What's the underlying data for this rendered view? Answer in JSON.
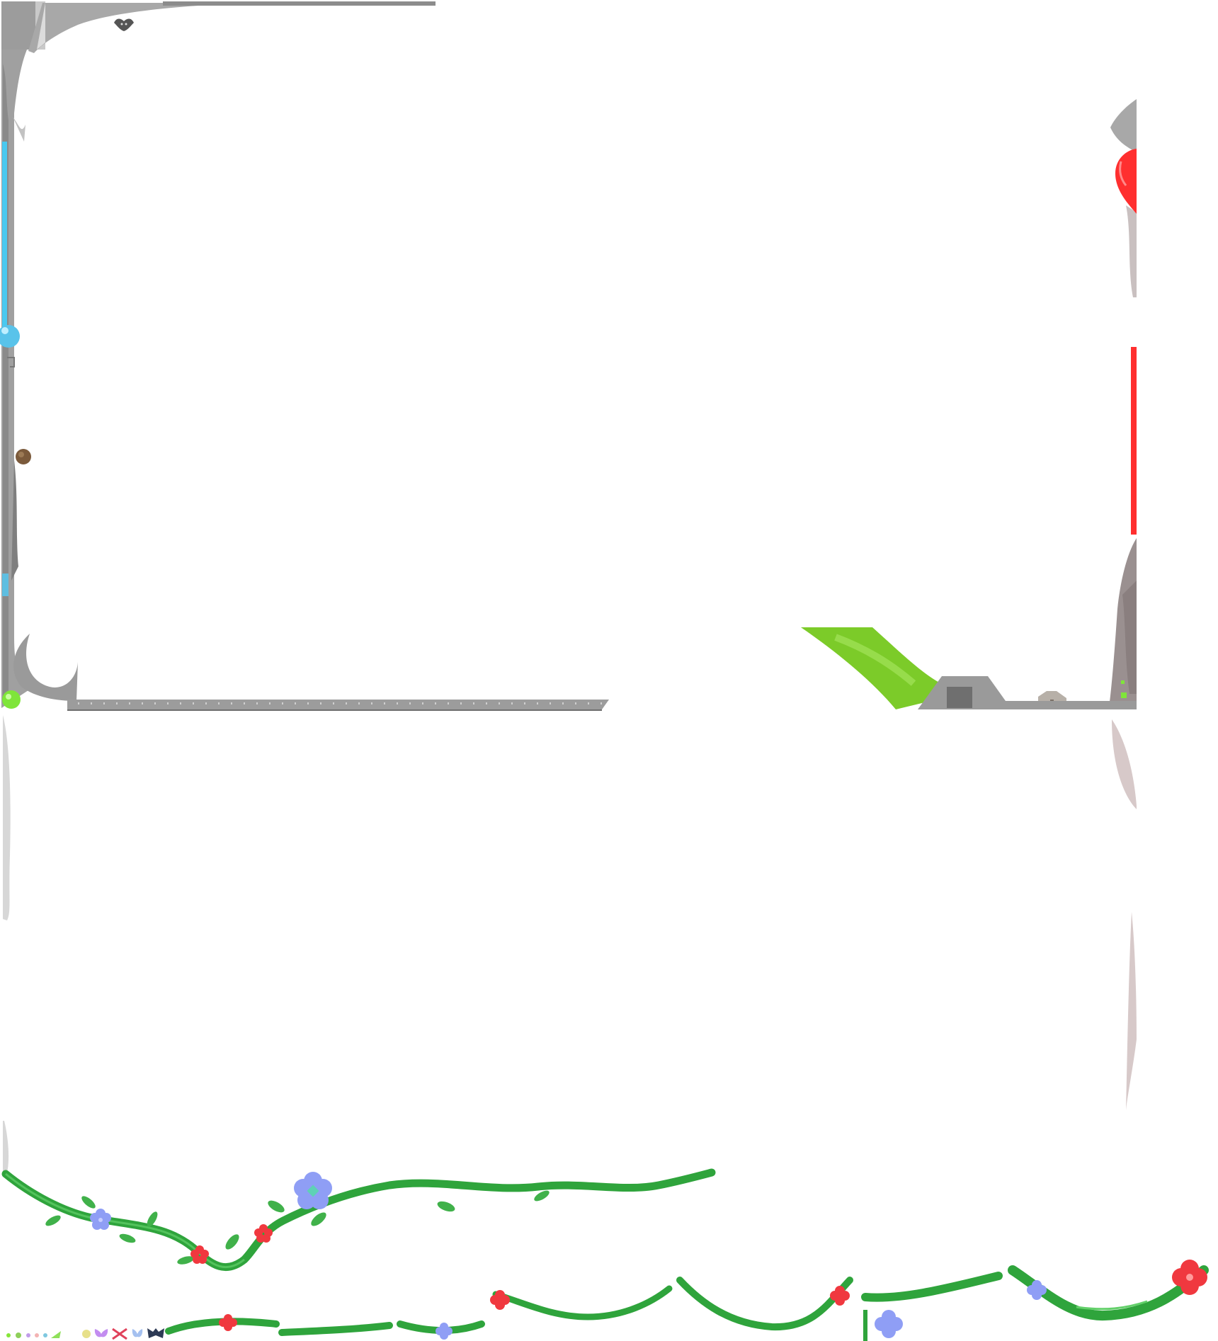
{
  "sheet": {
    "kind": "ui-sprite-sheet",
    "has_visible_text": false
  },
  "colors": {
    "background": "#ffffff",
    "stone": "#9c9c9c",
    "stone_dark": "#6f6f6f",
    "stone_light": "#c9c9c9",
    "mana_blue": "#49c9f0",
    "mana_orb": "#59c3ea",
    "health_red": "#ff2f2f",
    "leaf_green": "#7ccb29",
    "leaf_light": "#9fdc4a",
    "vine_green": "#2fa43c",
    "vine_dark": "#1f7c2d",
    "vine_highlight": "#63d06a",
    "flower_blue": "#8f9ef5",
    "flower_red": "#f0383f",
    "flower_center_teal": "#5ed1b5",
    "accent_green": "#86e63a",
    "brown_knot": "#7b5a3b"
  },
  "sprites": [
    {
      "name": "stone-frame-top-left-corner",
      "icon": "stone-arch"
    },
    {
      "name": "stone-frame-top-edge",
      "icon": "stone-bar"
    },
    {
      "name": "stone-frame-left-pillar",
      "icon": "stone-pillar"
    },
    {
      "name": "mana-bar-vertical",
      "icon": "blue-bar"
    },
    {
      "name": "mana-orb",
      "icon": "blue-orb"
    },
    {
      "name": "bat-ornament",
      "icon": "bat"
    },
    {
      "name": "brown-knot",
      "icon": "knot"
    },
    {
      "name": "stone-floor-bar",
      "icon": "stone-floor"
    },
    {
      "name": "green-orb-corner",
      "icon": "green-orb"
    },
    {
      "name": "stone-frame-right-pillar",
      "icon": "stone-pillar"
    },
    {
      "name": "health-heart",
      "icon": "red-heart"
    },
    {
      "name": "health-bar-vertical",
      "icon": "red-bar"
    },
    {
      "name": "green-leaf-ramp",
      "icon": "leaf"
    },
    {
      "name": "stone-house-large",
      "icon": "house"
    },
    {
      "name": "stone-house-small",
      "icon": "house"
    },
    {
      "name": "lock-indicator",
      "icon": "green-lock"
    },
    {
      "name": "vine-long-top",
      "icon": "vine"
    },
    {
      "name": "vine-segments-row",
      "icon": "vine"
    },
    {
      "name": "small-icons-row",
      "icon": "mini-icons"
    }
  ]
}
